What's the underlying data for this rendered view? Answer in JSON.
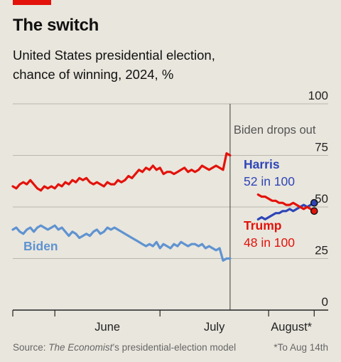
{
  "header": {
    "title": "The switch",
    "subtitle_line1": "United States presidential election,",
    "subtitle_line2": "chance of winning, 2024, %"
  },
  "footer": {
    "source_prefix": "Source: ",
    "source_publication": "The Economist",
    "source_suffix": "’s presidential-election model",
    "footnote": "*To Aug 14th"
  },
  "chart_data": {
    "type": "line",
    "xlim": [
      "2024-05-20",
      "2024-08-18"
    ],
    "ylim": [
      0,
      100
    ],
    "y_ticks": [
      {
        "value": 0,
        "label": "0"
      },
      {
        "value": 25,
        "label": "25"
      },
      {
        "value": 50,
        "label": "50"
      },
      {
        "value": 75,
        "label": "75"
      },
      {
        "value": 100,
        "label": "100"
      }
    ],
    "x_ticks": [
      {
        "date": "2024-06-01",
        "label": "June"
      },
      {
        "date": "2024-07-01",
        "label": "July"
      },
      {
        "date": "2024-08-01",
        "label": "August*"
      }
    ],
    "x_boundaries": [
      "2024-05-20",
      "2024-06-01",
      "2024-07-01",
      "2024-08-01",
      "2024-08-14"
    ],
    "grid": true,
    "event": {
      "date": "2024-07-21",
      "label": "Biden drops out"
    },
    "colors": {
      "trump": "#e3120b",
      "biden": "#5f93d1",
      "harris": "#2e45b8",
      "grid": "#b9b6ad",
      "event_line": "#555555",
      "axis_text": "#222222"
    },
    "series": [
      {
        "name": "Trump",
        "color": "#e3120b",
        "x": [
          "2024-05-20",
          "2024-05-21",
          "2024-05-22",
          "2024-05-23",
          "2024-05-24",
          "2024-05-25",
          "2024-05-26",
          "2024-05-27",
          "2024-05-28",
          "2024-05-29",
          "2024-05-30",
          "2024-05-31",
          "2024-06-01",
          "2024-06-02",
          "2024-06-03",
          "2024-06-04",
          "2024-06-05",
          "2024-06-06",
          "2024-06-07",
          "2024-06-08",
          "2024-06-09",
          "2024-06-10",
          "2024-06-11",
          "2024-06-12",
          "2024-06-13",
          "2024-06-14",
          "2024-06-15",
          "2024-06-16",
          "2024-06-17",
          "2024-06-18",
          "2024-06-19",
          "2024-06-20",
          "2024-06-21",
          "2024-06-22",
          "2024-06-23",
          "2024-06-24",
          "2024-06-25",
          "2024-06-26",
          "2024-06-27",
          "2024-06-28",
          "2024-06-29",
          "2024-06-30",
          "2024-07-01",
          "2024-07-02",
          "2024-07-03",
          "2024-07-04",
          "2024-07-05",
          "2024-07-06",
          "2024-07-07",
          "2024-07-08",
          "2024-07-09",
          "2024-07-10",
          "2024-07-11",
          "2024-07-12",
          "2024-07-13",
          "2024-07-14",
          "2024-07-15",
          "2024-07-16",
          "2024-07-17",
          "2024-07-18",
          "2024-07-19",
          "2024-07-20",
          "2024-07-21"
        ],
        "values": [
          60,
          59,
          61,
          62,
          61,
          63,
          61,
          59,
          58,
          60,
          59,
          60,
          59,
          61,
          60,
          62,
          61,
          63,
          62,
          64,
          63,
          64,
          62,
          61,
          62,
          61,
          60,
          62,
          61,
          61,
          63,
          62,
          63,
          65,
          64,
          66,
          68,
          67,
          69,
          68,
          70,
          68,
          69,
          66,
          67,
          67,
          66,
          67,
          68,
          69,
          67,
          68,
          67,
          68,
          70,
          69,
          68,
          69,
          70,
          69,
          68,
          76,
          75
        ]
      },
      {
        "name": "Biden",
        "color": "#5f93d1",
        "x": [
          "2024-05-20",
          "2024-05-21",
          "2024-05-22",
          "2024-05-23",
          "2024-05-24",
          "2024-05-25",
          "2024-05-26",
          "2024-05-27",
          "2024-05-28",
          "2024-05-29",
          "2024-05-30",
          "2024-05-31",
          "2024-06-01",
          "2024-06-02",
          "2024-06-03",
          "2024-06-04",
          "2024-06-05",
          "2024-06-06",
          "2024-06-07",
          "2024-06-08",
          "2024-06-09",
          "2024-06-10",
          "2024-06-11",
          "2024-06-12",
          "2024-06-13",
          "2024-06-14",
          "2024-06-15",
          "2024-06-16",
          "2024-06-17",
          "2024-06-18",
          "2024-06-19",
          "2024-06-20",
          "2024-06-21",
          "2024-06-22",
          "2024-06-23",
          "2024-06-24",
          "2024-06-25",
          "2024-06-26",
          "2024-06-27",
          "2024-06-28",
          "2024-06-29",
          "2024-06-30",
          "2024-07-01",
          "2024-07-02",
          "2024-07-03",
          "2024-07-04",
          "2024-07-05",
          "2024-07-06",
          "2024-07-07",
          "2024-07-08",
          "2024-07-09",
          "2024-07-10",
          "2024-07-11",
          "2024-07-12",
          "2024-07-13",
          "2024-07-14",
          "2024-07-15",
          "2024-07-16",
          "2024-07-17",
          "2024-07-18",
          "2024-07-19",
          "2024-07-20",
          "2024-07-21"
        ],
        "values": [
          39,
          40,
          38,
          37,
          39,
          40,
          38,
          40,
          41,
          40,
          39,
          40,
          41,
          39,
          40,
          38,
          36,
          38,
          37,
          35,
          36,
          37,
          36,
          38,
          39,
          37,
          38,
          40,
          39,
          40,
          39,
          38,
          37,
          36,
          35,
          34,
          33,
          32,
          31,
          32,
          31,
          33,
          30,
          32,
          31,
          30,
          32,
          31,
          33,
          32,
          31,
          32,
          32,
          31,
          32,
          30,
          31,
          30,
          29,
          30,
          24,
          25,
          25
        ]
      },
      {
        "name": "Harris",
        "color": "#2e45b8",
        "x": [
          "2024-07-29",
          "2024-07-30",
          "2024-07-31",
          "2024-08-01",
          "2024-08-02",
          "2024-08-03",
          "2024-08-04",
          "2024-08-05",
          "2024-08-06",
          "2024-08-07",
          "2024-08-08",
          "2024-08-09",
          "2024-08-10",
          "2024-08-11",
          "2024-08-12",
          "2024-08-13",
          "2024-08-14"
        ],
        "values": [
          44,
          45,
          44,
          45,
          46,
          47,
          47,
          48,
          48,
          49,
          48,
          49,
          50,
          51,
          50,
          51,
          52
        ],
        "end_label_name": "Harris",
        "end_label_value": "52 in 100"
      },
      {
        "name": "Trump",
        "color": "#e3120b",
        "x": [
          "2024-07-29",
          "2024-07-30",
          "2024-07-31",
          "2024-08-01",
          "2024-08-02",
          "2024-08-03",
          "2024-08-04",
          "2024-08-05",
          "2024-08-06",
          "2024-08-07",
          "2024-08-08",
          "2024-08-09",
          "2024-08-10",
          "2024-08-11",
          "2024-08-12",
          "2024-08-13",
          "2024-08-14"
        ],
        "values": [
          56,
          55,
          55,
          54,
          53,
          53,
          52,
          52,
          51,
          51,
          52,
          51,
          50,
          49,
          50,
          49,
          48
        ],
        "end_label_name": "Trump",
        "end_label_value": "48 in 100"
      }
    ],
    "labels": {
      "biden": "Biden"
    }
  }
}
